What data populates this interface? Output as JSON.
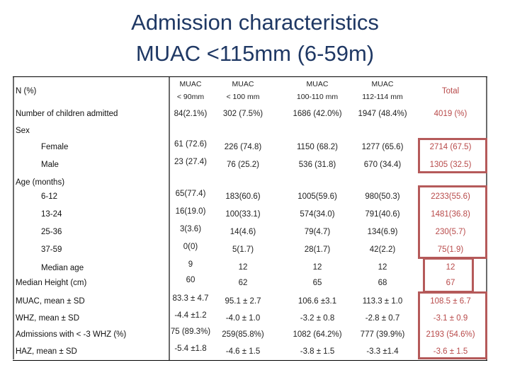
{
  "slide": {
    "title_line1": "Admission characteristics",
    "title_line2": "MUAC <115mm (6-59m)"
  },
  "table": {
    "header": {
      "row_label": "N (%)",
      "columns": [
        {
          "line1": "MUAC",
          "line2": "< 90mm"
        },
        {
          "line1": "MUAC",
          "line2": "< 100 mm"
        },
        {
          "line1": "MUAC",
          "line2": "100-110 mm"
        },
        {
          "line1": "MUAC",
          "line2": "112-114 mm"
        },
        {
          "line1": "Total",
          "line2": ""
        }
      ]
    },
    "rows": [
      {
        "label": "Number of children admitted",
        "values": [
          "84(2.1%)",
          "302 (7.5%)",
          "1686 (42.0%)",
          "1947 (48.4%)",
          "4019 (%)"
        ]
      },
      {
        "label": "Sex",
        "values": []
      },
      {
        "label": "Female",
        "values": [
          "61 (72.6)",
          "226 (74.8)",
          "1150 (68.2)",
          "1277 (65.6)",
          "2714 (67.5)"
        ]
      },
      {
        "label": "Male",
        "values": [
          "23 (27.4)",
          "76 (25.2)",
          "536 (31.8)",
          "670 (34.4)",
          "1305 (32.5)"
        ]
      },
      {
        "label": "Age (months)",
        "values": []
      },
      {
        "label": "6-12",
        "values": [
          "65(77.4)",
          "183(60.6)",
          "1005(59.6)",
          "980(50.3)",
          "2233(55.6)"
        ]
      },
      {
        "label": "13-24",
        "values": [
          "16(19.0)",
          "100(33.1)",
          "574(34.0)",
          "791(40.6)",
          "1481(36.8)"
        ]
      },
      {
        "label": "25-36",
        "values": [
          "3(3.6)",
          "14(4.6)",
          "79(4.7)",
          "134(6.9)",
          "230(5.7)"
        ]
      },
      {
        "label": "37-59",
        "values": [
          "0(0)",
          "5(1.7)",
          "28(1.7)",
          "42(2.2)",
          "75(1.9)"
        ]
      },
      {
        "label": "Median age",
        "values": [
          "9",
          "12",
          "12",
          "12",
          "12"
        ]
      },
      {
        "label": "Median Height (cm)",
        "values": [
          "60",
          "62",
          "65",
          "68",
          "67"
        ]
      },
      {
        "label": "MUAC, mean ± SD",
        "values": [
          "83.3 ± 4.7",
          "95.1 ± 2.7",
          "106.6 ±3.1",
          "113.3 ± 1.0",
          "108.5 ± 6.7"
        ]
      },
      {
        "label": "WHZ, mean ± SD",
        "values": [
          "-4.4 ±1.2",
          "-4.0 ± 1.0",
          "-3.2 ± 0.8",
          "-2.8 ± 0.7",
          "-3.1 ± 0.9"
        ]
      },
      {
        "label": "Admissions with < -3 WHZ (%)",
        "values": [
          "75 (89.3%)",
          "259(85.8%)",
          "1082 (64.2%)",
          "777 (39.9%)",
          "2193 (54.6%)"
        ]
      },
      {
        "label": "HAZ, mean ± SD",
        "values": [
          "-5.4 ±1.8",
          "-4.6 ± 1.5",
          "-3.8 ± 1.5",
          "-3.3 ±1.4",
          "-3.6 ± 1.5"
        ]
      }
    ]
  },
  "colors": {
    "title": "#1f3864",
    "total_text": "#b84a4a",
    "highlight_box": "#b55a5a"
  }
}
